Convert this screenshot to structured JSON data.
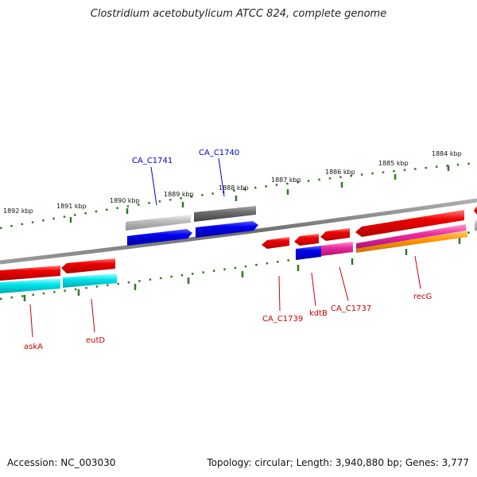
{
  "title": "Clostridium acetobutylicum ATCC 824, complete genome",
  "footer": {
    "accession": "Accession: NC_003030",
    "summary": "Topology: circular; Length: 3,940,880 bp; Genes: 3,777"
  },
  "ticks_top": [
    "1892 kbp",
    "1891 kbp",
    "1890 kbp",
    "1889 kbp",
    "1888 kbp",
    "1887 kbp",
    "1886 kbp",
    "1885 kbp",
    "1884 kbp"
  ],
  "genes_top": [
    "CA_C1741",
    "CA_C1740"
  ],
  "genes_bottom": [
    "askA",
    "eutD",
    "CA_C1739",
    "kdtB",
    "CA_C1737",
    "recG"
  ],
  "colors": {
    "tick": "#2e7d1f",
    "backbone": "#7a7a7a",
    "red": "#ee0000",
    "blue": "#0000ee",
    "cyan": "#00e6ee",
    "magenta": "#ee2aa0",
    "orange": "#ff9a00",
    "gray_light": "#bdbdbd",
    "gray_dark": "#6e6e6e",
    "label_blue": "#0000cc",
    "label_red": "#cc0000"
  }
}
